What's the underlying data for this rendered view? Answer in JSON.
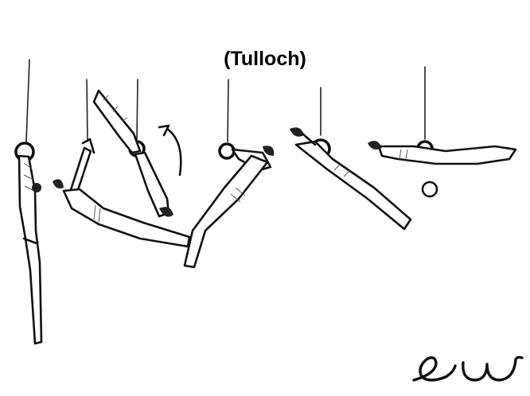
{
  "title": "(Tulloch)",
  "colors": {
    "ink": "#111111",
    "background": "#ffffff"
  }
}
